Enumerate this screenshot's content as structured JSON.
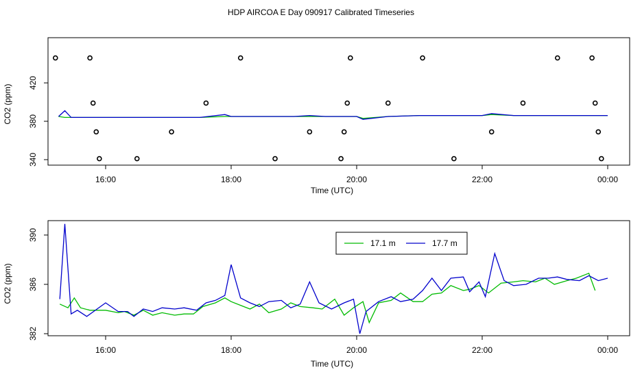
{
  "title": "HDP AIRCOA E  Day 090917  Calibrated Timeseries",
  "colors": {
    "series_17_1": "#00bb00",
    "series_17_7": "#0000cc",
    "markers": "#000000"
  },
  "chart_data": [
    {
      "type": "scatter",
      "panel": "top",
      "xlabel": "Time (UTC)",
      "ylabel": "CO2 (ppm)",
      "xlim": [
        15.0,
        0.5
      ],
      "x_axis_note": "hours UTC; ticks after 23:59 wrap to 00:00 of next day",
      "ylim": [
        338,
        455
      ],
      "x_ticks": [
        "16:00",
        "18:00",
        "20:00",
        "22:00",
        "00:00"
      ],
      "y_ticks": [
        "340",
        "380",
        "420"
      ],
      "grid": false,
      "lines": [
        {
          "name": "17.1 m",
          "color": "#00bb00",
          "x": [
            15.25,
            15.35,
            15.45,
            15.6,
            16.0,
            16.5,
            17.0,
            17.5,
            17.9,
            18.0,
            18.5,
            19.0,
            19.25,
            19.5,
            20.0,
            20.1,
            20.5,
            21.0,
            21.5,
            22.0,
            22.15,
            22.5,
            23.0,
            23.5,
            23.8,
            24.0
          ],
          "y": [
            385,
            384,
            384,
            384,
            384,
            384,
            384,
            384,
            385,
            385,
            385,
            385,
            385,
            385,
            385,
            383,
            385,
            386,
            386,
            386,
            387,
            386,
            386,
            386,
            386,
            386
          ]
        },
        {
          "name": "17.7 m",
          "color": "#0000cc",
          "x": [
            15.25,
            15.35,
            15.45,
            15.6,
            16.0,
            16.5,
            17.0,
            17.5,
            17.9,
            18.0,
            18.5,
            19.0,
            19.25,
            19.5,
            20.0,
            20.1,
            20.5,
            21.0,
            21.5,
            22.0,
            22.15,
            22.5,
            23.0,
            23.5,
            23.8,
            24.0
          ],
          "y": [
            385,
            391,
            384,
            384,
            384,
            384,
            384,
            384,
            387,
            385,
            385,
            385,
            386,
            385,
            385,
            382,
            385,
            386,
            386,
            386,
            388,
            386,
            386,
            386,
            386,
            386
          ]
        }
      ],
      "points": [
        {
          "x": 15.2,
          "y": 446
        },
        {
          "x": 15.75,
          "y": 446
        },
        {
          "x": 18.15,
          "y": 446
        },
        {
          "x": 19.9,
          "y": 446
        },
        {
          "x": 21.05,
          "y": 446
        },
        {
          "x": 23.2,
          "y": 446
        },
        {
          "x": 23.75,
          "y": 446
        },
        {
          "x": 15.8,
          "y": 399
        },
        {
          "x": 17.6,
          "y": 399
        },
        {
          "x": 19.85,
          "y": 399
        },
        {
          "x": 20.5,
          "y": 399
        },
        {
          "x": 22.65,
          "y": 399
        },
        {
          "x": 23.8,
          "y": 399
        },
        {
          "x": 15.85,
          "y": 369
        },
        {
          "x": 17.05,
          "y": 369
        },
        {
          "x": 19.25,
          "y": 369
        },
        {
          "x": 19.8,
          "y": 369
        },
        {
          "x": 22.15,
          "y": 369
        },
        {
          "x": 23.85,
          "y": 369
        },
        {
          "x": 15.9,
          "y": 341
        },
        {
          "x": 16.5,
          "y": 341
        },
        {
          "x": 18.7,
          "y": 341
        },
        {
          "x": 19.75,
          "y": 341
        },
        {
          "x": 21.55,
          "y": 341
        },
        {
          "x": 23.9,
          "y": 341
        }
      ]
    },
    {
      "type": "line",
      "panel": "bottom",
      "xlabel": "Time (UTC)",
      "ylabel": "CO2 (ppm)",
      "xlim": [
        15.0,
        0.5
      ],
      "ylim": [
        381.8,
        391.0
      ],
      "x_ticks": [
        "16:00",
        "18:00",
        "20:00",
        "22:00",
        "00:00"
      ],
      "y_ticks": [
        "382",
        "386",
        "390"
      ],
      "grid": false,
      "legend_position": "top-center",
      "series": [
        {
          "name": "17.1 m",
          "color": "#00bb00",
          "x": [
            15.27,
            15.4,
            15.5,
            15.6,
            15.75,
            16.0,
            16.2,
            16.3,
            16.45,
            16.6,
            16.75,
            16.9,
            17.1,
            17.25,
            17.4,
            17.55,
            17.75,
            17.9,
            18.0,
            18.15,
            18.3,
            18.45,
            18.6,
            18.8,
            18.95,
            19.1,
            19.3,
            19.45,
            19.65,
            19.8,
            19.95,
            20.1,
            20.2,
            20.35,
            20.55,
            20.7,
            20.9,
            21.05,
            21.2,
            21.35,
            21.5,
            21.7,
            21.8,
            21.95,
            22.1,
            22.3,
            22.5,
            22.65,
            22.85,
            23.0,
            23.15,
            23.35,
            23.5,
            23.7,
            23.8
          ],
          "y": [
            384.4,
            384.1,
            384.9,
            384.1,
            383.9,
            383.9,
            383.7,
            383.8,
            383.5,
            383.9,
            383.5,
            383.7,
            383.5,
            383.6,
            383.6,
            384.2,
            384.5,
            384.9,
            384.6,
            384.3,
            384.0,
            384.4,
            383.7,
            384.0,
            384.5,
            384.2,
            384.1,
            384.0,
            384.8,
            383.5,
            384.1,
            384.6,
            382.9,
            384.5,
            384.7,
            385.3,
            384.6,
            384.6,
            385.2,
            385.3,
            385.9,
            385.5,
            385.6,
            385.9,
            385.3,
            386.1,
            386.2,
            386.3,
            386.2,
            386.5,
            386.0,
            386.3,
            386.5,
            386.9,
            385.5
          ]
        },
        {
          "name": "17.7 m",
          "color": "#0000cc",
          "x": [
            15.27,
            15.35,
            15.45,
            15.55,
            15.7,
            16.0,
            16.2,
            16.35,
            16.45,
            16.6,
            16.75,
            16.9,
            17.1,
            17.25,
            17.45,
            17.6,
            17.75,
            17.9,
            18.0,
            18.15,
            18.3,
            18.45,
            18.6,
            18.8,
            18.95,
            19.1,
            19.25,
            19.4,
            19.6,
            19.8,
            19.95,
            20.05,
            20.15,
            20.35,
            20.55,
            20.7,
            20.9,
            21.05,
            21.2,
            21.35,
            21.5,
            21.7,
            21.8,
            21.95,
            22.05,
            22.2,
            22.35,
            22.5,
            22.7,
            22.9,
            23.05,
            23.2,
            23.35,
            23.55,
            23.7,
            23.85,
            24.0
          ],
          "y": [
            384.8,
            390.9,
            383.6,
            383.9,
            383.4,
            384.5,
            383.8,
            383.8,
            383.4,
            384.0,
            383.8,
            384.1,
            384.0,
            384.1,
            383.9,
            384.5,
            384.7,
            385.1,
            387.6,
            384.9,
            384.5,
            384.2,
            384.6,
            384.7,
            384.1,
            384.4,
            386.2,
            384.5,
            384.0,
            384.5,
            384.8,
            382.0,
            383.8,
            384.6,
            385.0,
            384.6,
            384.8,
            385.5,
            386.5,
            385.5,
            386.5,
            386.6,
            385.4,
            386.2,
            385.0,
            388.5,
            386.3,
            385.9,
            386.0,
            386.5,
            386.5,
            386.6,
            386.4,
            386.3,
            386.7,
            386.3,
            386.5
          ]
        }
      ]
    }
  ],
  "legend": {
    "entries": [
      "17.1 m",
      "17.7 m"
    ]
  }
}
